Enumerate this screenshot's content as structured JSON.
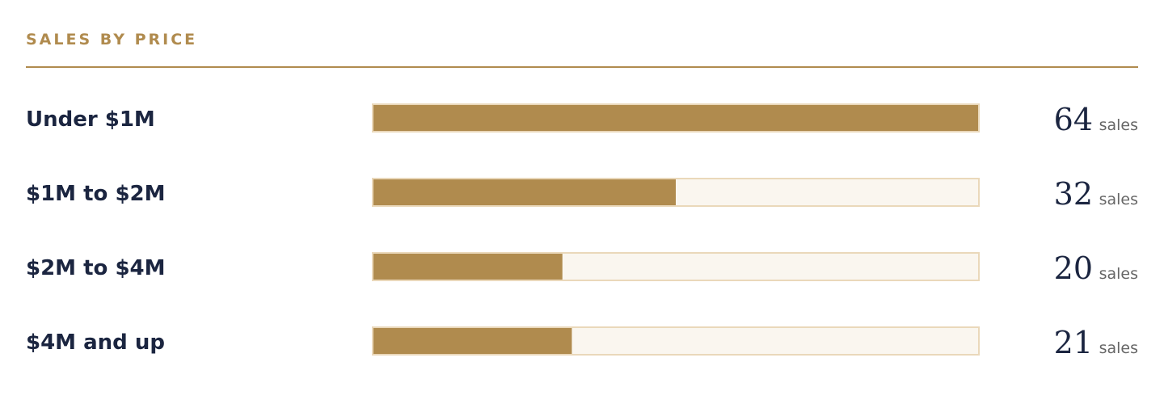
{
  "chart_data": {
    "type": "bar",
    "orientation": "horizontal",
    "title": "SALES BY PRICE",
    "categories": [
      "Under $1M",
      "$1M to $2M",
      "$2M to $4M",
      "$4M and up"
    ],
    "values": [
      64,
      32,
      20,
      21
    ],
    "value_unit": "sales",
    "color": "#b08b4e",
    "track_color": "#faf6ef",
    "track_border": "#ead8ba",
    "xlim": [
      0,
      64
    ]
  }
}
